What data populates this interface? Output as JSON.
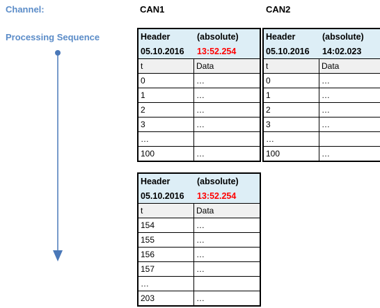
{
  "labels": {
    "channel": "Channel:",
    "processing_sequence": "Processing Sequence"
  },
  "colors": {
    "label_blue": "#5b8cc8",
    "header_bg": "#ddeef6",
    "highlight_red": "#ff0000",
    "arrow": "#4a78b8"
  },
  "channels": [
    {
      "name": "CAN1"
    },
    {
      "name": "CAN2"
    }
  ],
  "blocks": [
    {
      "header_label": "Header",
      "absolute_label": "(absolute)",
      "date": "05.10.2016",
      "time": "13:52.254",
      "time_highlighted": true,
      "col_t": "t",
      "col_data": "Data",
      "rows": [
        {
          "t": "0",
          "data": "…"
        },
        {
          "t": "1",
          "data": "…"
        },
        {
          "t": "2",
          "data": "…"
        },
        {
          "t": "3",
          "data": "…"
        },
        {
          "t": "…",
          "data": ""
        },
        {
          "t": "100",
          "data": "…"
        }
      ]
    },
    {
      "header_label": "Header",
      "absolute_label": "(absolute)",
      "date": "05.10.2016",
      "time": "14:02.023",
      "time_highlighted": false,
      "col_t": "t",
      "col_data": "Data",
      "rows": [
        {
          "t": "0",
          "data": "…"
        },
        {
          "t": "1",
          "data": "…"
        },
        {
          "t": "2",
          "data": "…"
        },
        {
          "t": "3",
          "data": "…"
        },
        {
          "t": "…",
          "data": ""
        },
        {
          "t": "100",
          "data": "…"
        }
      ]
    },
    {
      "header_label": "Header",
      "absolute_label": "(absolute)",
      "date": "05.10.2016",
      "time": "13:52.254",
      "time_highlighted": true,
      "col_t": "t",
      "col_data": "Data",
      "rows": [
        {
          "t": "154",
          "data": "…"
        },
        {
          "t": "155",
          "data": "…"
        },
        {
          "t": "156",
          "data": "…"
        },
        {
          "t": "157",
          "data": "…"
        },
        {
          "t": "…",
          "data": ""
        },
        {
          "t": "203",
          "data": "…"
        }
      ]
    }
  ]
}
